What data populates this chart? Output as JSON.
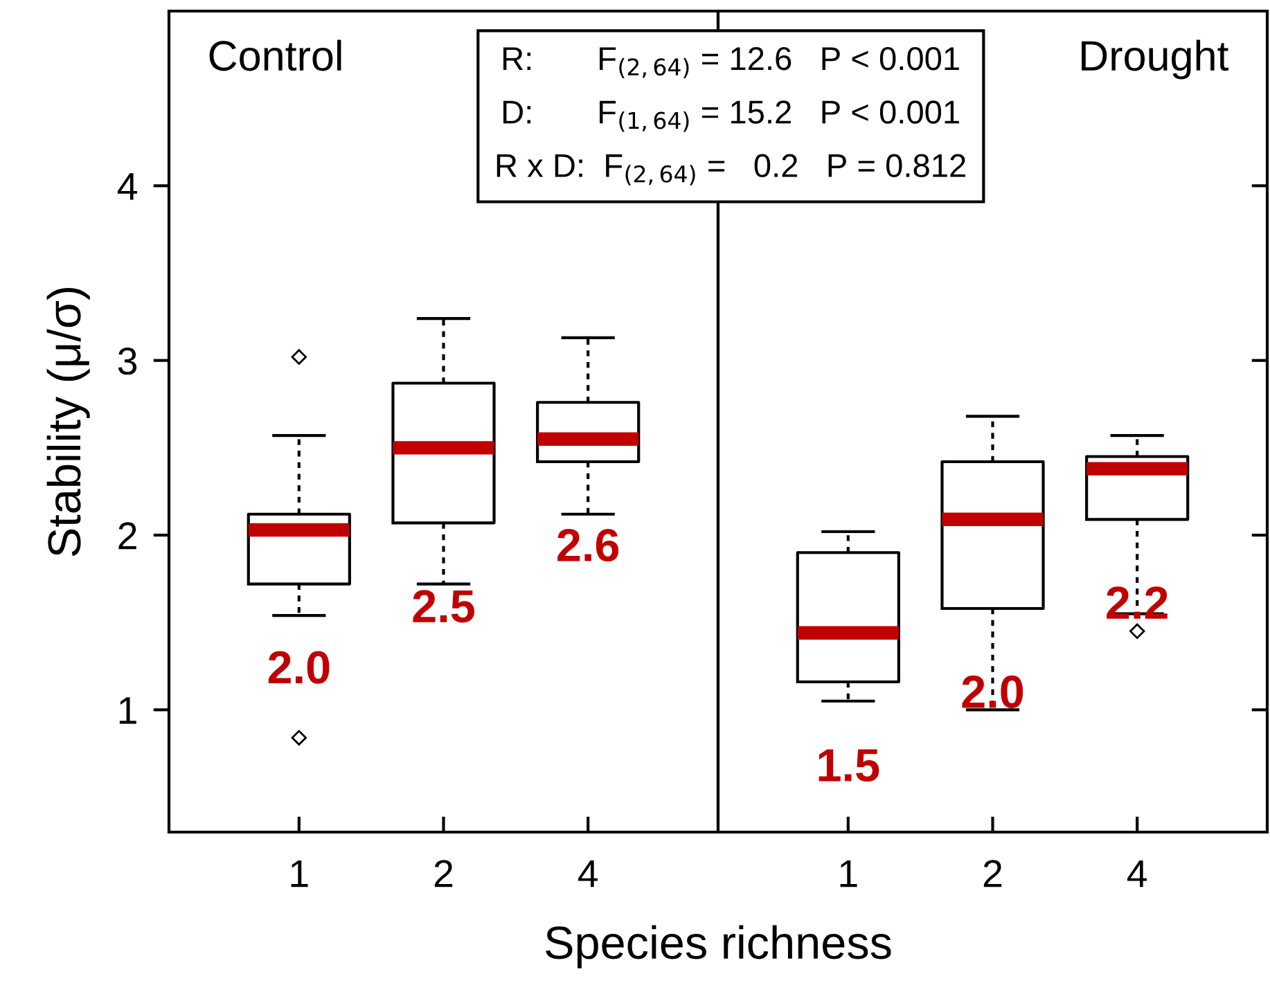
{
  "chart_data": [
    {
      "type": "box",
      "title": "Control",
      "ylabel": "Stability (μ/σ)",
      "xlabel": "Species richness",
      "categories": [
        "1",
        "2",
        "4"
      ],
      "ylim": [
        0.3,
        5.0
      ],
      "yticks": [
        1,
        2,
        3,
        4
      ],
      "grid": false,
      "legend": false,
      "series": [
        {
          "color": "#000000",
          "boxes": [
            {
              "low": 1.54,
              "q1": 1.72,
              "median": 2.03,
              "q3": 2.12,
              "high": 2.57,
              "outliers": [
                3.02,
                0.84
              ]
            },
            {
              "low": 1.72,
              "q1": 2.07,
              "median": 2.5,
              "q3": 2.87,
              "high": 3.24
            },
            {
              "low": 2.12,
              "q1": 2.42,
              "median": 2.55,
              "q3": 2.76,
              "high": 3.13
            }
          ]
        }
      ],
      "annotations": [
        "2.0",
        "2.5",
        "2.6",
        "R:       F$_{(2,64)}$ = 12.6   P < 0.001",
        "D:       F$_{(1,64)}$ = 15.2   P < 0.001",
        "R x D:  F$_{(2,64)}$ =   0.2   P = 0.812"
      ]
    },
    {
      "type": "box",
      "title": "Drought",
      "categories": [
        "1",
        "2",
        "4"
      ],
      "ylim": [
        0.3,
        5.0
      ],
      "yticks": [
        1,
        2,
        3,
        4
      ],
      "tick_labels": "x",
      "grid": false,
      "legend": false,
      "series": [
        {
          "color": "#000000",
          "boxes": [
            {
              "low": 1.05,
              "q1": 1.16,
              "median": 1.44,
              "q3": 1.9,
              "high": 2.02
            },
            {
              "low": 1.0,
              "q1": 1.58,
              "median": 2.09,
              "q3": 2.42,
              "high": 2.68
            },
            {
              "low": 1.55,
              "q1": 2.09,
              "median": 2.38,
              "q3": 2.45,
              "high": 2.57,
              "outliers": [
                1.45
              ]
            }
          ]
        }
      ],
      "annotations": [
        "1.5",
        "2.0",
        "2.2"
      ]
    }
  ]
}
